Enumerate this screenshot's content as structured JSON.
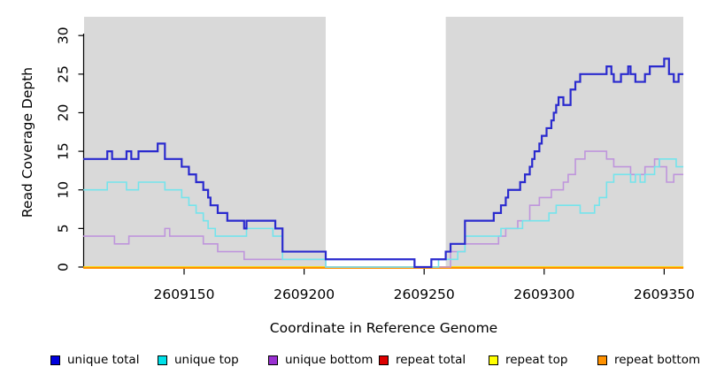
{
  "chart_data": {
    "type": "line",
    "subtype": "step",
    "title": "",
    "xlabel": "Coordinate in Reference Genome",
    "ylabel": "Read Coverage Depth",
    "xlim": [
      2609108,
      2609358
    ],
    "ylim": [
      0,
      32.4
    ],
    "x_ticks": [
      2609150,
      2609200,
      2609250,
      2609300,
      2609350
    ],
    "y_ticks": [
      0,
      5,
      10,
      15,
      20,
      25,
      30
    ],
    "grid": false,
    "plot_bg_color": "#d9d9d9",
    "page_bg_color": "#ffffff",
    "axis_color": "#000000",
    "gap_region": {
      "x_start": 2609209,
      "x_end": 2609259,
      "color": "#ffffff"
    },
    "legend_position": "bottom",
    "legend_left_offsets": [
      57,
      178,
      303,
      428,
      552,
      675
    ],
    "series": [
      {
        "name": "unique total",
        "color": "#2a2ace",
        "legend_color": "#0000dd",
        "width": 2.2,
        "points": [
          [
            2609108,
            14
          ],
          [
            2609118,
            15
          ],
          [
            2609120,
            14
          ],
          [
            2609126,
            15
          ],
          [
            2609128,
            14
          ],
          [
            2609131,
            15
          ],
          [
            2609139,
            16
          ],
          [
            2609142,
            14
          ],
          [
            2609149,
            13
          ],
          [
            2609152,
            12
          ],
          [
            2609155,
            11
          ],
          [
            2609158,
            10
          ],
          [
            2609160,
            9
          ],
          [
            2609161,
            8
          ],
          [
            2609164,
            7
          ],
          [
            2609168,
            6
          ],
          [
            2609175,
            5
          ],
          [
            2609176,
            6
          ],
          [
            2609188,
            5
          ],
          [
            2609191,
            2
          ],
          [
            2609209,
            1
          ],
          [
            2609246,
            0
          ],
          [
            2609253,
            1
          ],
          [
            2609259,
            2
          ],
          [
            2609261,
            3
          ],
          [
            2609267,
            6
          ],
          [
            2609279,
            7
          ],
          [
            2609282,
            8
          ],
          [
            2609284,
            9
          ],
          [
            2609285,
            10
          ],
          [
            2609290,
            11
          ],
          [
            2609292,
            12
          ],
          [
            2609294,
            13
          ],
          [
            2609295,
            14
          ],
          [
            2609296,
            15
          ],
          [
            2609298,
            16
          ],
          [
            2609299,
            17
          ],
          [
            2609301,
            18
          ],
          [
            2609303,
            19
          ],
          [
            2609304,
            20
          ],
          [
            2609305,
            21
          ],
          [
            2609306,
            22
          ],
          [
            2609308,
            21
          ],
          [
            2609311,
            23
          ],
          [
            2609313,
            24
          ],
          [
            2609315,
            25
          ],
          [
            2609326,
            26
          ],
          [
            2609328,
            25
          ],
          [
            2609329,
            24
          ],
          [
            2609332,
            25
          ],
          [
            2609335,
            26
          ],
          [
            2609336,
            25
          ],
          [
            2609338,
            24
          ],
          [
            2609342,
            25
          ],
          [
            2609344,
            26
          ],
          [
            2609350,
            27
          ],
          [
            2609352,
            25
          ],
          [
            2609354,
            24
          ],
          [
            2609356,
            25
          ]
        ]
      },
      {
        "name": "unique top",
        "color": "#74e4ec",
        "legend_color": "#00e0e8",
        "width": 1.6,
        "points": [
          [
            2609108,
            10
          ],
          [
            2609118,
            11
          ],
          [
            2609126,
            10
          ],
          [
            2609131,
            11
          ],
          [
            2609142,
            10
          ],
          [
            2609149,
            9
          ],
          [
            2609152,
            8
          ],
          [
            2609155,
            7
          ],
          [
            2609158,
            6
          ],
          [
            2609160,
            5
          ],
          [
            2609163,
            4
          ],
          [
            2609176,
            5
          ],
          [
            2609187,
            4
          ],
          [
            2609191,
            1
          ],
          [
            2609209,
            0
          ],
          [
            2609256,
            1
          ],
          [
            2609264,
            2
          ],
          [
            2609267,
            4
          ],
          [
            2609282,
            5
          ],
          [
            2609291,
            6
          ],
          [
            2609302,
            7
          ],
          [
            2609305,
            8
          ],
          [
            2609315,
            7
          ],
          [
            2609321,
            8
          ],
          [
            2609323,
            9
          ],
          [
            2609326,
            11
          ],
          [
            2609329,
            12
          ],
          [
            2609336,
            11
          ],
          [
            2609338,
            12
          ],
          [
            2609340,
            11
          ],
          [
            2609342,
            12
          ],
          [
            2609346,
            13
          ],
          [
            2609348,
            14
          ],
          [
            2609355,
            13
          ]
        ]
      },
      {
        "name": "unique bottom",
        "color": "#bf95dc",
        "legend_color": "#9a30d2",
        "width": 1.6,
        "points": [
          [
            2609108,
            4
          ],
          [
            2609121,
            3
          ],
          [
            2609127,
            4
          ],
          [
            2609142,
            5
          ],
          [
            2609144,
            4
          ],
          [
            2609158,
            3
          ],
          [
            2609164,
            2
          ],
          [
            2609175,
            1
          ],
          [
            2609209,
            0
          ],
          [
            2609261,
            2
          ],
          [
            2609267,
            3
          ],
          [
            2609281,
            4
          ],
          [
            2609284,
            5
          ],
          [
            2609289,
            6
          ],
          [
            2609294,
            8
          ],
          [
            2609298,
            9
          ],
          [
            2609303,
            10
          ],
          [
            2609308,
            11
          ],
          [
            2609310,
            12
          ],
          [
            2609313,
            14
          ],
          [
            2609317,
            15
          ],
          [
            2609326,
            14
          ],
          [
            2609329,
            13
          ],
          [
            2609336,
            12
          ],
          [
            2609342,
            13
          ],
          [
            2609346,
            14
          ],
          [
            2609348,
            13
          ],
          [
            2609351,
            11
          ],
          [
            2609354,
            12
          ]
        ]
      },
      {
        "name": "repeat total",
        "color": "#dd0000",
        "legend_color": "#dd0000",
        "width": 1.6,
        "points": [
          [
            2609108,
            0
          ]
        ]
      },
      {
        "name": "repeat top",
        "color": "#ffff00",
        "legend_color": "#ffff00",
        "width": 1.6,
        "points": [
          [
            2609108,
            0
          ]
        ]
      },
      {
        "name": "repeat bottom",
        "color": "#ff9100",
        "legend_color": "#ff9100",
        "width": 2.0,
        "points": [
          [
            2609108,
            0
          ]
        ]
      }
    ]
  }
}
